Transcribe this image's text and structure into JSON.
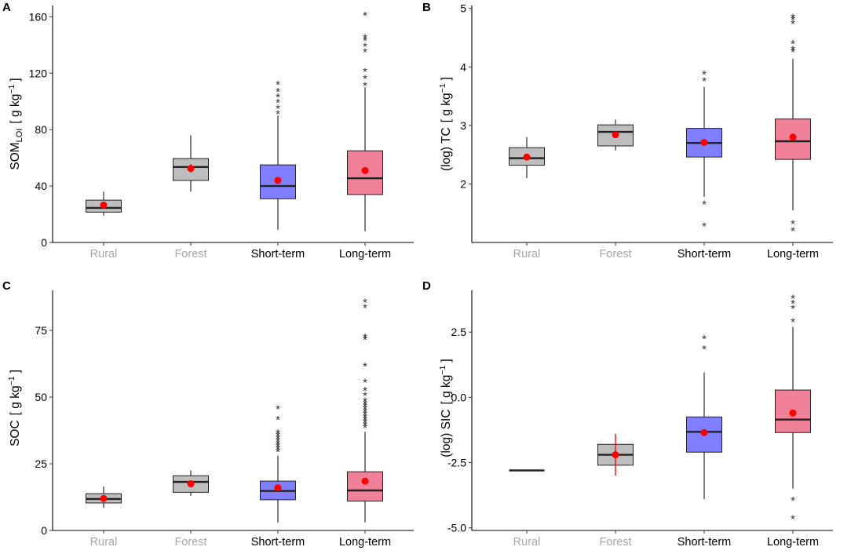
{
  "figure": {
    "colors": {
      "Rural": "#bebebe",
      "Forest": "#bebebe",
      "Short-term": "#7f7fff",
      "Long-term": "#f08098",
      "mean": "#ff0000",
      "median": "#222222",
      "whisker": "#000000",
      "outlier": "#333333",
      "active_label": "#000000",
      "muted_label": "#a6a6a6"
    },
    "muted_categories": [
      "Rural",
      "Forest"
    ]
  },
  "chart_data": [
    {
      "type": "box",
      "panel": "A",
      "categories": [
        "Rural",
        "Forest",
        "Short-term",
        "Long-term"
      ],
      "ylabel_main": "SOM",
      "ylabel_sub": "LOI",
      "ylabel_unit_pre": "[ g  kg",
      "ylabel_exp": "−1",
      "ylabel_unit_post": "]",
      "ylim": [
        0,
        168
      ],
      "yticks": [
        0,
        40,
        80,
        120,
        160
      ],
      "ytick_labels": [
        "0",
        "40",
        "80",
        "120",
        "160"
      ],
      "boxes": [
        {
          "category": "Rural",
          "q1": 21.5,
          "median": 24.5,
          "q3": 30,
          "whisker_low": 19,
          "whisker_high": 36,
          "mean": 26.5,
          "mean_err": 0,
          "outliers": []
        },
        {
          "category": "Forest",
          "q1": 44,
          "median": 53.5,
          "q3": 59.5,
          "whisker_low": 36,
          "whisker_high": 76,
          "mean": 52.5,
          "mean_err": 3,
          "outliers": []
        },
        {
          "category": "Short-term",
          "q1": 31,
          "median": 40,
          "q3": 55,
          "whisker_low": 9,
          "whisker_high": 90,
          "mean": 44,
          "mean_err": 0,
          "outliers": [
            92,
            96,
            100,
            104,
            108,
            113
          ]
        },
        {
          "category": "Long-term",
          "q1": 34,
          "median": 45.5,
          "q3": 65,
          "whisker_low": 8,
          "whisker_high": 110,
          "mean": 51,
          "mean_err": 0,
          "outliers": [
            112,
            117,
            122,
            136,
            140,
            144,
            146,
            162
          ]
        }
      ]
    },
    {
      "type": "box",
      "panel": "B",
      "categories": [
        "Rural",
        "Forest",
        "Short-term",
        "Long-term"
      ],
      "ylabel_main": "(log) TC",
      "ylabel_sub": "",
      "ylabel_unit_pre": "[ g  kg",
      "ylabel_exp": "−1",
      "ylabel_unit_post": "]",
      "ylim": [
        1.0,
        5.05
      ],
      "yticks": [
        2,
        3,
        4,
        5
      ],
      "ytick_labels": [
        "2",
        "3",
        "4",
        "5"
      ],
      "boxes": [
        {
          "category": "Rural",
          "q1": 2.32,
          "median": 2.44,
          "q3": 2.62,
          "whisker_low": 2.1,
          "whisker_high": 2.8,
          "mean": 2.46,
          "mean_err": 0,
          "outliers": []
        },
        {
          "category": "Forest",
          "q1": 2.65,
          "median": 2.89,
          "q3": 3.01,
          "whisker_low": 2.57,
          "whisker_high": 3.1,
          "mean": 2.84,
          "mean_err": 0,
          "outliers": []
        },
        {
          "category": "Short-term",
          "q1": 2.46,
          "median": 2.7,
          "q3": 2.95,
          "whisker_low": 1.78,
          "whisker_high": 3.66,
          "mean": 2.71,
          "mean_err": 0,
          "outliers": [
            1.3,
            1.68,
            3.78,
            3.9
          ]
        },
        {
          "category": "Long-term",
          "q1": 2.42,
          "median": 2.73,
          "q3": 3.11,
          "whisker_low": 1.55,
          "whisker_high": 4.14,
          "mean": 2.8,
          "mean_err": 0,
          "outliers": [
            1.22,
            1.34,
            4.28,
            4.32,
            4.42,
            4.76,
            4.83,
            4.87
          ]
        }
      ]
    },
    {
      "type": "box",
      "panel": "C",
      "categories": [
        "Rural",
        "Forest",
        "Short-term",
        "Long-term"
      ],
      "ylabel_main": "SOC",
      "ylabel_sub": "",
      "ylabel_unit_pre": "[ g  kg",
      "ylabel_exp": "−1",
      "ylabel_unit_post": "]",
      "ylim": [
        0,
        90
      ],
      "yticks": [
        0,
        25,
        50,
        75
      ],
      "ytick_labels": [
        "0",
        "25",
        "50",
        "75"
      ],
      "boxes": [
        {
          "category": "Rural",
          "q1": 10.3,
          "median": 11.8,
          "q3": 13.8,
          "whisker_low": 8.5,
          "whisker_high": 16.5,
          "mean": 12,
          "mean_err": 0,
          "outliers": []
        },
        {
          "category": "Forest",
          "q1": 14.3,
          "median": 18.2,
          "q3": 20.5,
          "whisker_low": 13,
          "whisker_high": 22.5,
          "mean": 17.5,
          "mean_err": 0,
          "outliers": []
        },
        {
          "category": "Short-term",
          "q1": 11.5,
          "median": 14.8,
          "q3": 18.5,
          "whisker_low": 3,
          "whisker_high": 28,
          "mean": 16,
          "mean_err": 0,
          "outliers": [
            30,
            31,
            32,
            33,
            34,
            35,
            36,
            37,
            42,
            46
          ]
        },
        {
          "category": "Long-term",
          "q1": 11,
          "median": 15,
          "q3": 22,
          "whisker_low": 3,
          "whisker_high": 37,
          "mean": 18.5,
          "mean_err": 0,
          "outliers": [
            39,
            40,
            41,
            42,
            43,
            44,
            45,
            46,
            47,
            48,
            49,
            51,
            53,
            56,
            62,
            72,
            73,
            84,
            86
          ]
        }
      ]
    },
    {
      "type": "box",
      "panel": "D",
      "categories": [
        "Rural",
        "Forest",
        "Short-term",
        "Long-term"
      ],
      "ylabel_main": "(log) SIC",
      "ylabel_sub": "",
      "ylabel_unit_pre": "[ g  kg",
      "ylabel_exp": "−1",
      "ylabel_unit_post": "]",
      "ylim": [
        -5.1,
        4.1
      ],
      "yticks": [
        -5,
        -2.5,
        0,
        2.5
      ],
      "ytick_labels": [
        "-5.0",
        "-2.5",
        "0.0",
        "2.5"
      ],
      "boxes": [
        {
          "category": "Rural",
          "q1": -2.8,
          "median": -2.8,
          "q3": -2.8,
          "whisker_low": -2.8,
          "whisker_high": -2.8,
          "mean": -2.8,
          "mean_err": 0,
          "outliers": [],
          "line_only": true
        },
        {
          "category": "Forest",
          "q1": -2.6,
          "median": -2.2,
          "q3": -1.8,
          "whisker_low": -2.6,
          "whisker_high": -1.8,
          "mean": -2.2,
          "mean_err": 0.8,
          "outliers": []
        },
        {
          "category": "Short-term",
          "q1": -2.1,
          "median": -1.32,
          "q3": -0.75,
          "whisker_low": -3.9,
          "whisker_high": 0.95,
          "mean": -1.35,
          "mean_err": 0,
          "outliers": [
            1.9,
            2.3
          ]
        },
        {
          "category": "Long-term",
          "q1": -1.35,
          "median": -0.85,
          "q3": 0.28,
          "whisker_low": -3.5,
          "whisker_high": 2.7,
          "mean": -0.6,
          "mean_err": 0,
          "outliers": [
            -4.6,
            -3.9,
            2.95,
            3.45,
            3.65,
            3.85
          ]
        }
      ]
    }
  ]
}
